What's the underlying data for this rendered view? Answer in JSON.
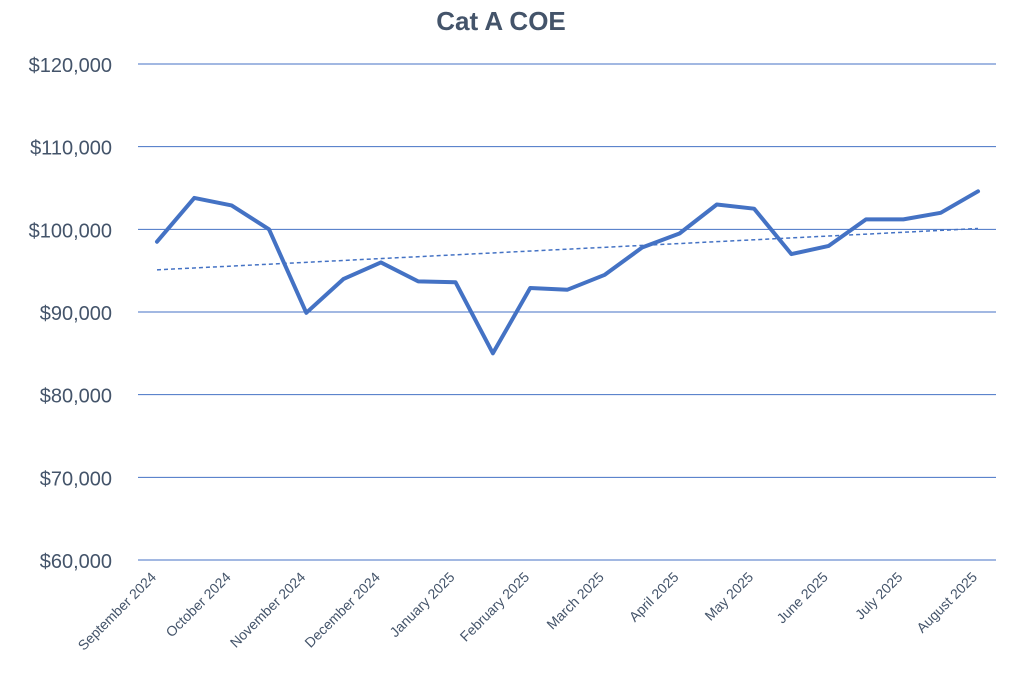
{
  "chart_data": {
    "type": "line",
    "title": "Cat A COE",
    "xlabel": "",
    "ylabel": "",
    "ylim": [
      60000,
      120000
    ],
    "yticks": [
      60000,
      70000,
      80000,
      90000,
      100000,
      110000,
      120000
    ],
    "ytick_labels": [
      "$60,000",
      "$70,000",
      "$80,000",
      "$90,000",
      "$100,000",
      "$110,000",
      "$120,000"
    ],
    "x_tick_labels": [
      "September 2024",
      "October 2024",
      "November 2024",
      "December 2024",
      "January 2025",
      "February 2025",
      "March 2025",
      "April 2025",
      "May 2025",
      "June 2025",
      "July 2025",
      "August 2025"
    ],
    "grid": "horizontal",
    "legend": "none",
    "series": [
      {
        "values": [
          98500,
          103800,
          102900,
          100000,
          89900,
          94000,
          96000,
          93700,
          93600,
          85000,
          92900,
          92700,
          94500,
          97800,
          99500,
          103000,
          102500,
          97000,
          98000,
          101200,
          101200,
          102000,
          104600
        ],
        "color": "#4472c4",
        "style": "solid"
      },
      {
        "values": [
          95100,
          100100
        ],
        "color": "#4472c4",
        "style": "dashed",
        "kind": "linear-trend"
      }
    ]
  }
}
